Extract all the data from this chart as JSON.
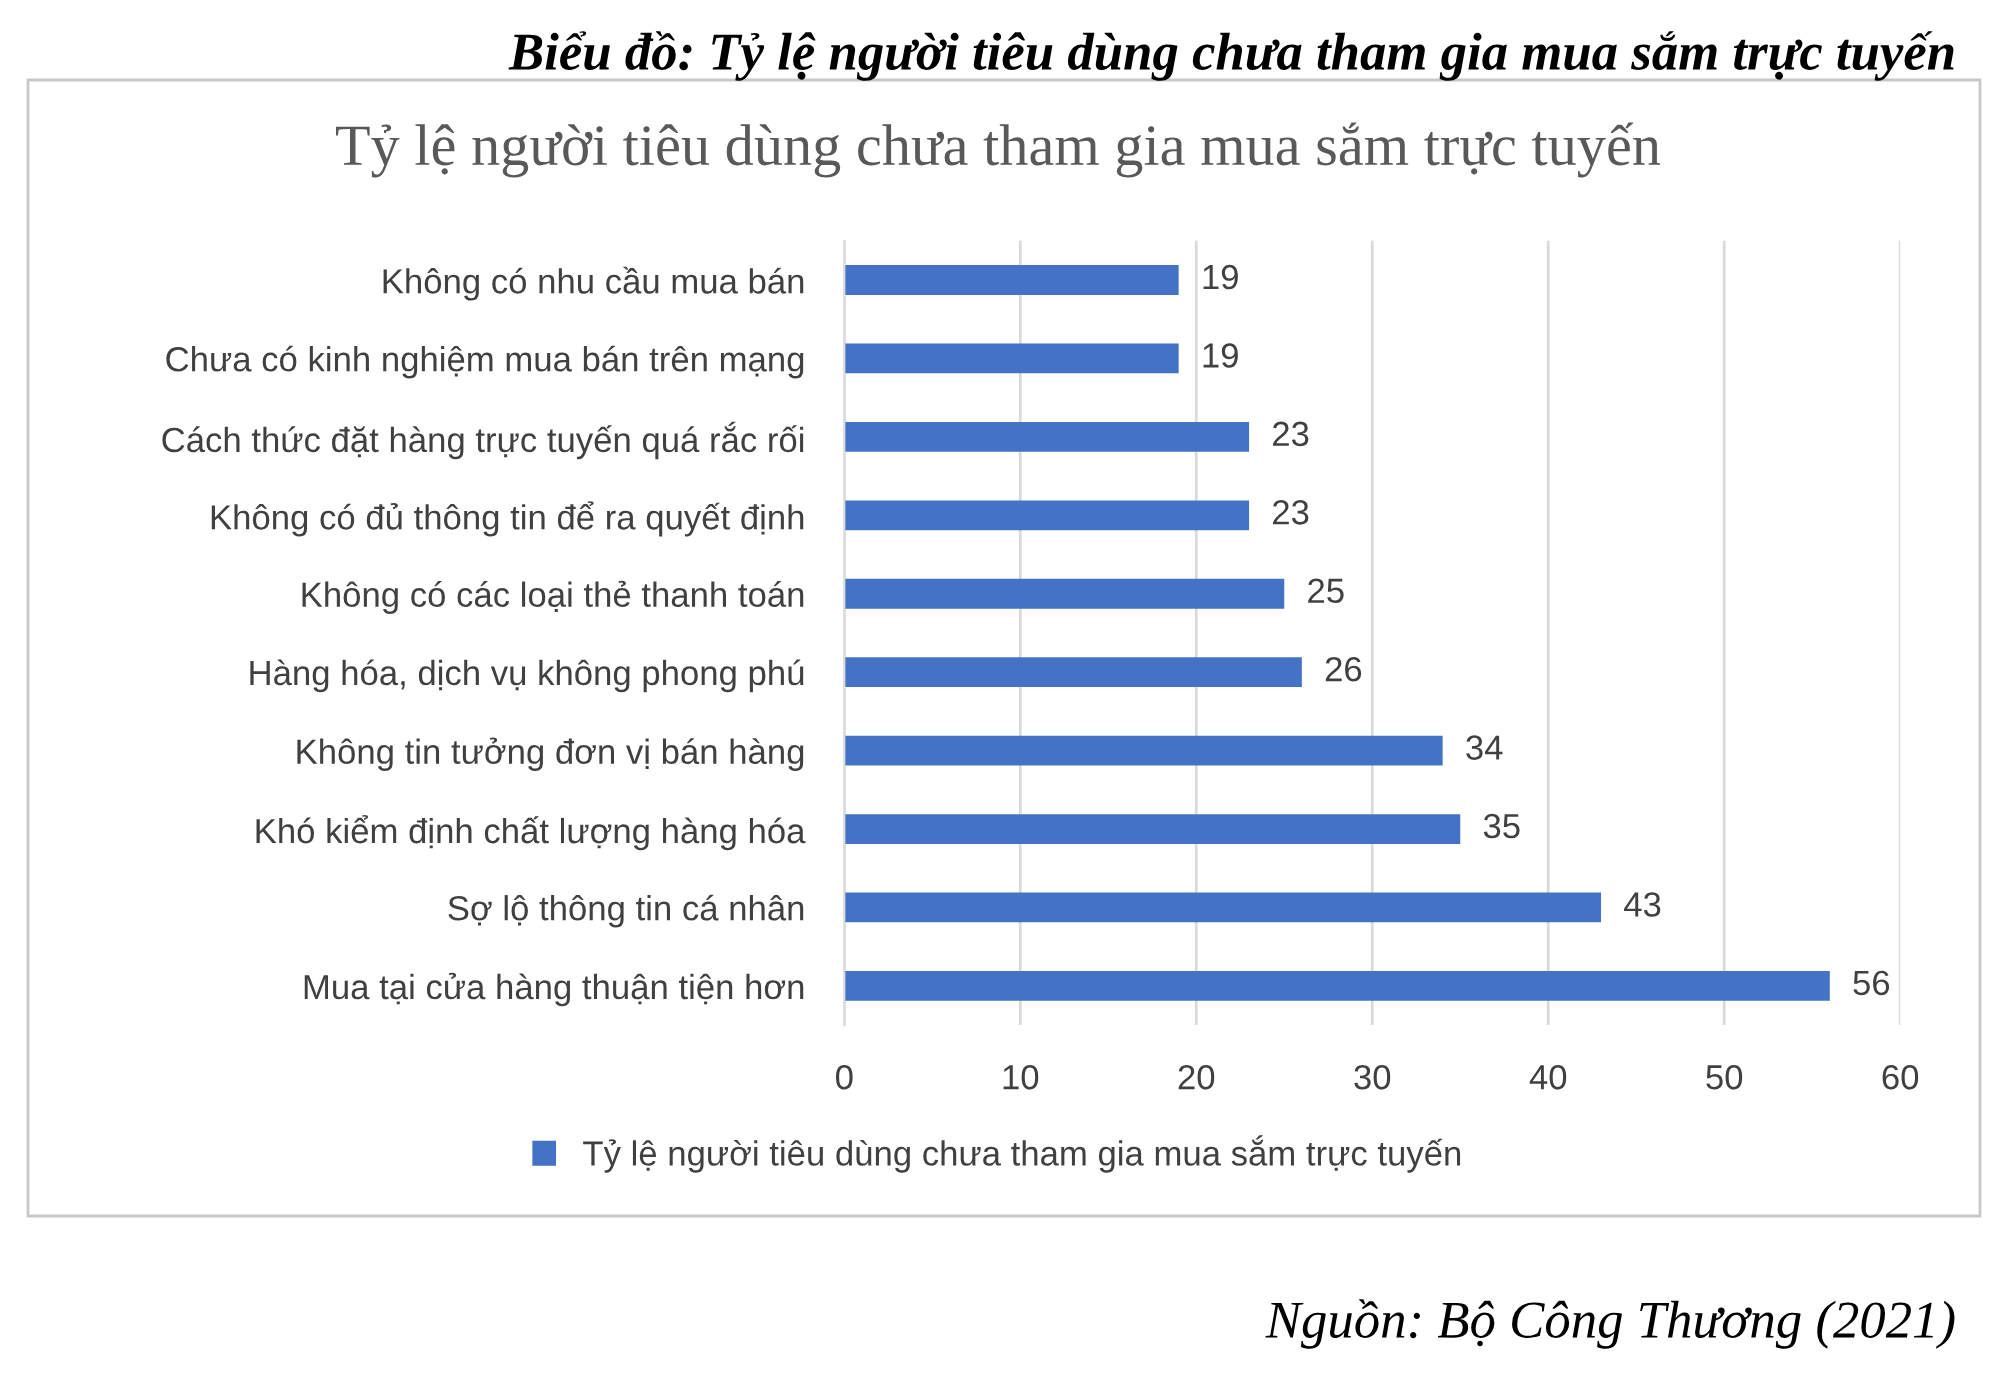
{
  "chart_data": {
    "type": "bar",
    "orientation": "horizontal",
    "title": "Biểu đồ: Tỷ lệ người tiêu dùng chưa tham gia mua sắm trực tuyến",
    "subtitle": "Tỷ lệ người tiêu dùng chưa tham gia mua sắm trực tuyến",
    "categories": [
      "Không có nhu cầu mua bán",
      "Chưa có kinh nghiệm mua bán trên mạng",
      "Cách thức đặt hàng trực tuyến quá rắc rối",
      "Không có đủ thông tin để ra quyết định",
      "Không có các loại thẻ thanh toán",
      "Hàng hóa, dịch vụ không phong phú",
      "Không tin tưởng đơn vị bán hàng",
      "Khó kiểm định chất lượng hàng hóa",
      "Sợ lộ thông tin cá nhân",
      "Mua tại cửa hàng thuận tiện hơn"
    ],
    "series": [
      {
        "name": "Tỷ lệ người tiêu dùng chưa tham gia mua sắm trực tuyến",
        "color": "#4472c4",
        "values": [
          19,
          19,
          23,
          23,
          25,
          26,
          34,
          35,
          43,
          56
        ]
      }
    ],
    "xlim": [
      0,
      60
    ],
    "xticks": [
      0,
      10,
      20,
      30,
      40,
      50,
      60
    ],
    "grid": "x",
    "legend": "bottom",
    "data_labels": true,
    "annotations": [
      "Nguồn: Bộ Công Thương (2021)"
    ]
  }
}
